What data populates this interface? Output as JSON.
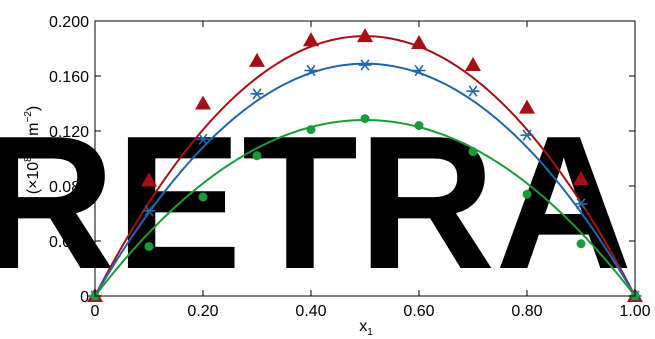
{
  "watermark": "RETRA",
  "chart_data": {
    "type": "line",
    "title": "",
    "xlabel": "x",
    "xlabel_sub": "1",
    "ylabel_symbol": "π",
    "ylabel_sup": "E",
    "ylabel_sub": "i",
    "ylabel_unit_open": "(×10",
    "ylabel_unit_exp": "8",
    "ylabel_unit_mid": " N m",
    "ylabel_unit_exp2": "−2",
    "ylabel_unit_close": ")",
    "xlim": [
      0,
      1.0
    ],
    "ylim": [
      0,
      0.2
    ],
    "xticks": [
      0,
      0.2,
      0.4,
      0.6,
      0.8,
      1.0
    ],
    "xtick_labels": [
      "0",
      "0.20",
      "0.40",
      "0.60",
      "0.80",
      "1.00"
    ],
    "yticks": [
      0,
      0.04,
      0.08,
      0.12,
      0.16,
      0.2
    ],
    "ytick_labels": [
      "0",
      "0.040",
      "0.080",
      "0.120",
      "0.160",
      "0.200"
    ],
    "grid": false,
    "series": [
      {
        "marker": "triangle",
        "color": "#a50f15",
        "x": [
          0,
          0.1,
          0.2,
          0.3,
          0.4,
          0.5,
          0.6,
          0.7,
          0.8,
          0.9,
          1.0
        ],
        "values": [
          0,
          0.084,
          0.14,
          0.171,
          0.186,
          0.189,
          0.184,
          0.168,
          0.137,
          0.085,
          0
        ],
        "curve_peak": 0.189
      },
      {
        "marker": "asterisk",
        "color": "#2166ac",
        "x": [
          0,
          0.1,
          0.2,
          0.3,
          0.4,
          0.5,
          0.6,
          0.7,
          0.8,
          0.9,
          1.0
        ],
        "values": [
          0,
          0.062,
          0.114,
          0.147,
          0.164,
          0.168,
          0.164,
          0.149,
          0.117,
          0.067,
          0
        ],
        "curve_peak": 0.169
      },
      {
        "marker": "circle",
        "color": "#1a9a3a",
        "x": [
          0,
          0.1,
          0.2,
          0.3,
          0.4,
          0.5,
          0.6,
          0.7,
          0.8,
          0.9,
          1.0
        ],
        "values": [
          0,
          0.036,
          0.072,
          0.102,
          0.121,
          0.129,
          0.124,
          0.105,
          0.074,
          0.038,
          0
        ],
        "curve_peak": 0.128
      }
    ]
  }
}
